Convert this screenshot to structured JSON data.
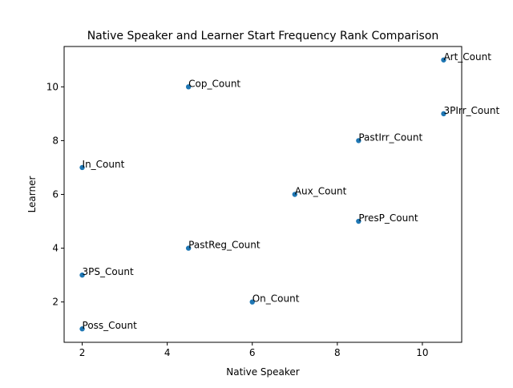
{
  "chart_data": {
    "type": "scatter",
    "title": "Native Speaker and Learner Start Frequency Rank Comparison",
    "xlabel": "Native Speaker",
    "ylabel": "Learner",
    "xlim": [
      1.575,
      10.925
    ],
    "ylim": [
      0.5,
      11.5
    ],
    "xticks": [
      2,
      4,
      6,
      8,
      10
    ],
    "yticks": [
      2,
      4,
      6,
      8,
      10
    ],
    "grid": false,
    "marker_color": "#1f77b4",
    "points": [
      {
        "label": "Art_Count",
        "x": 10.5,
        "y": 11
      },
      {
        "label": "Cop_Count",
        "x": 4.5,
        "y": 10
      },
      {
        "label": "3PIrr_Count",
        "x": 10.5,
        "y": 9
      },
      {
        "label": "PastIrr_Count",
        "x": 8.5,
        "y": 8
      },
      {
        "label": "In_Count",
        "x": 2,
        "y": 7
      },
      {
        "label": "Aux_Count",
        "x": 7,
        "y": 6
      },
      {
        "label": "PresP_Count",
        "x": 8.5,
        "y": 5
      },
      {
        "label": "PastReg_Count",
        "x": 4.5,
        "y": 4
      },
      {
        "label": "3PS_Count",
        "x": 2,
        "y": 3
      },
      {
        "label": "On_Count",
        "x": 6,
        "y": 2
      },
      {
        "label": "Poss_Count",
        "x": 2,
        "y": 1
      }
    ]
  }
}
